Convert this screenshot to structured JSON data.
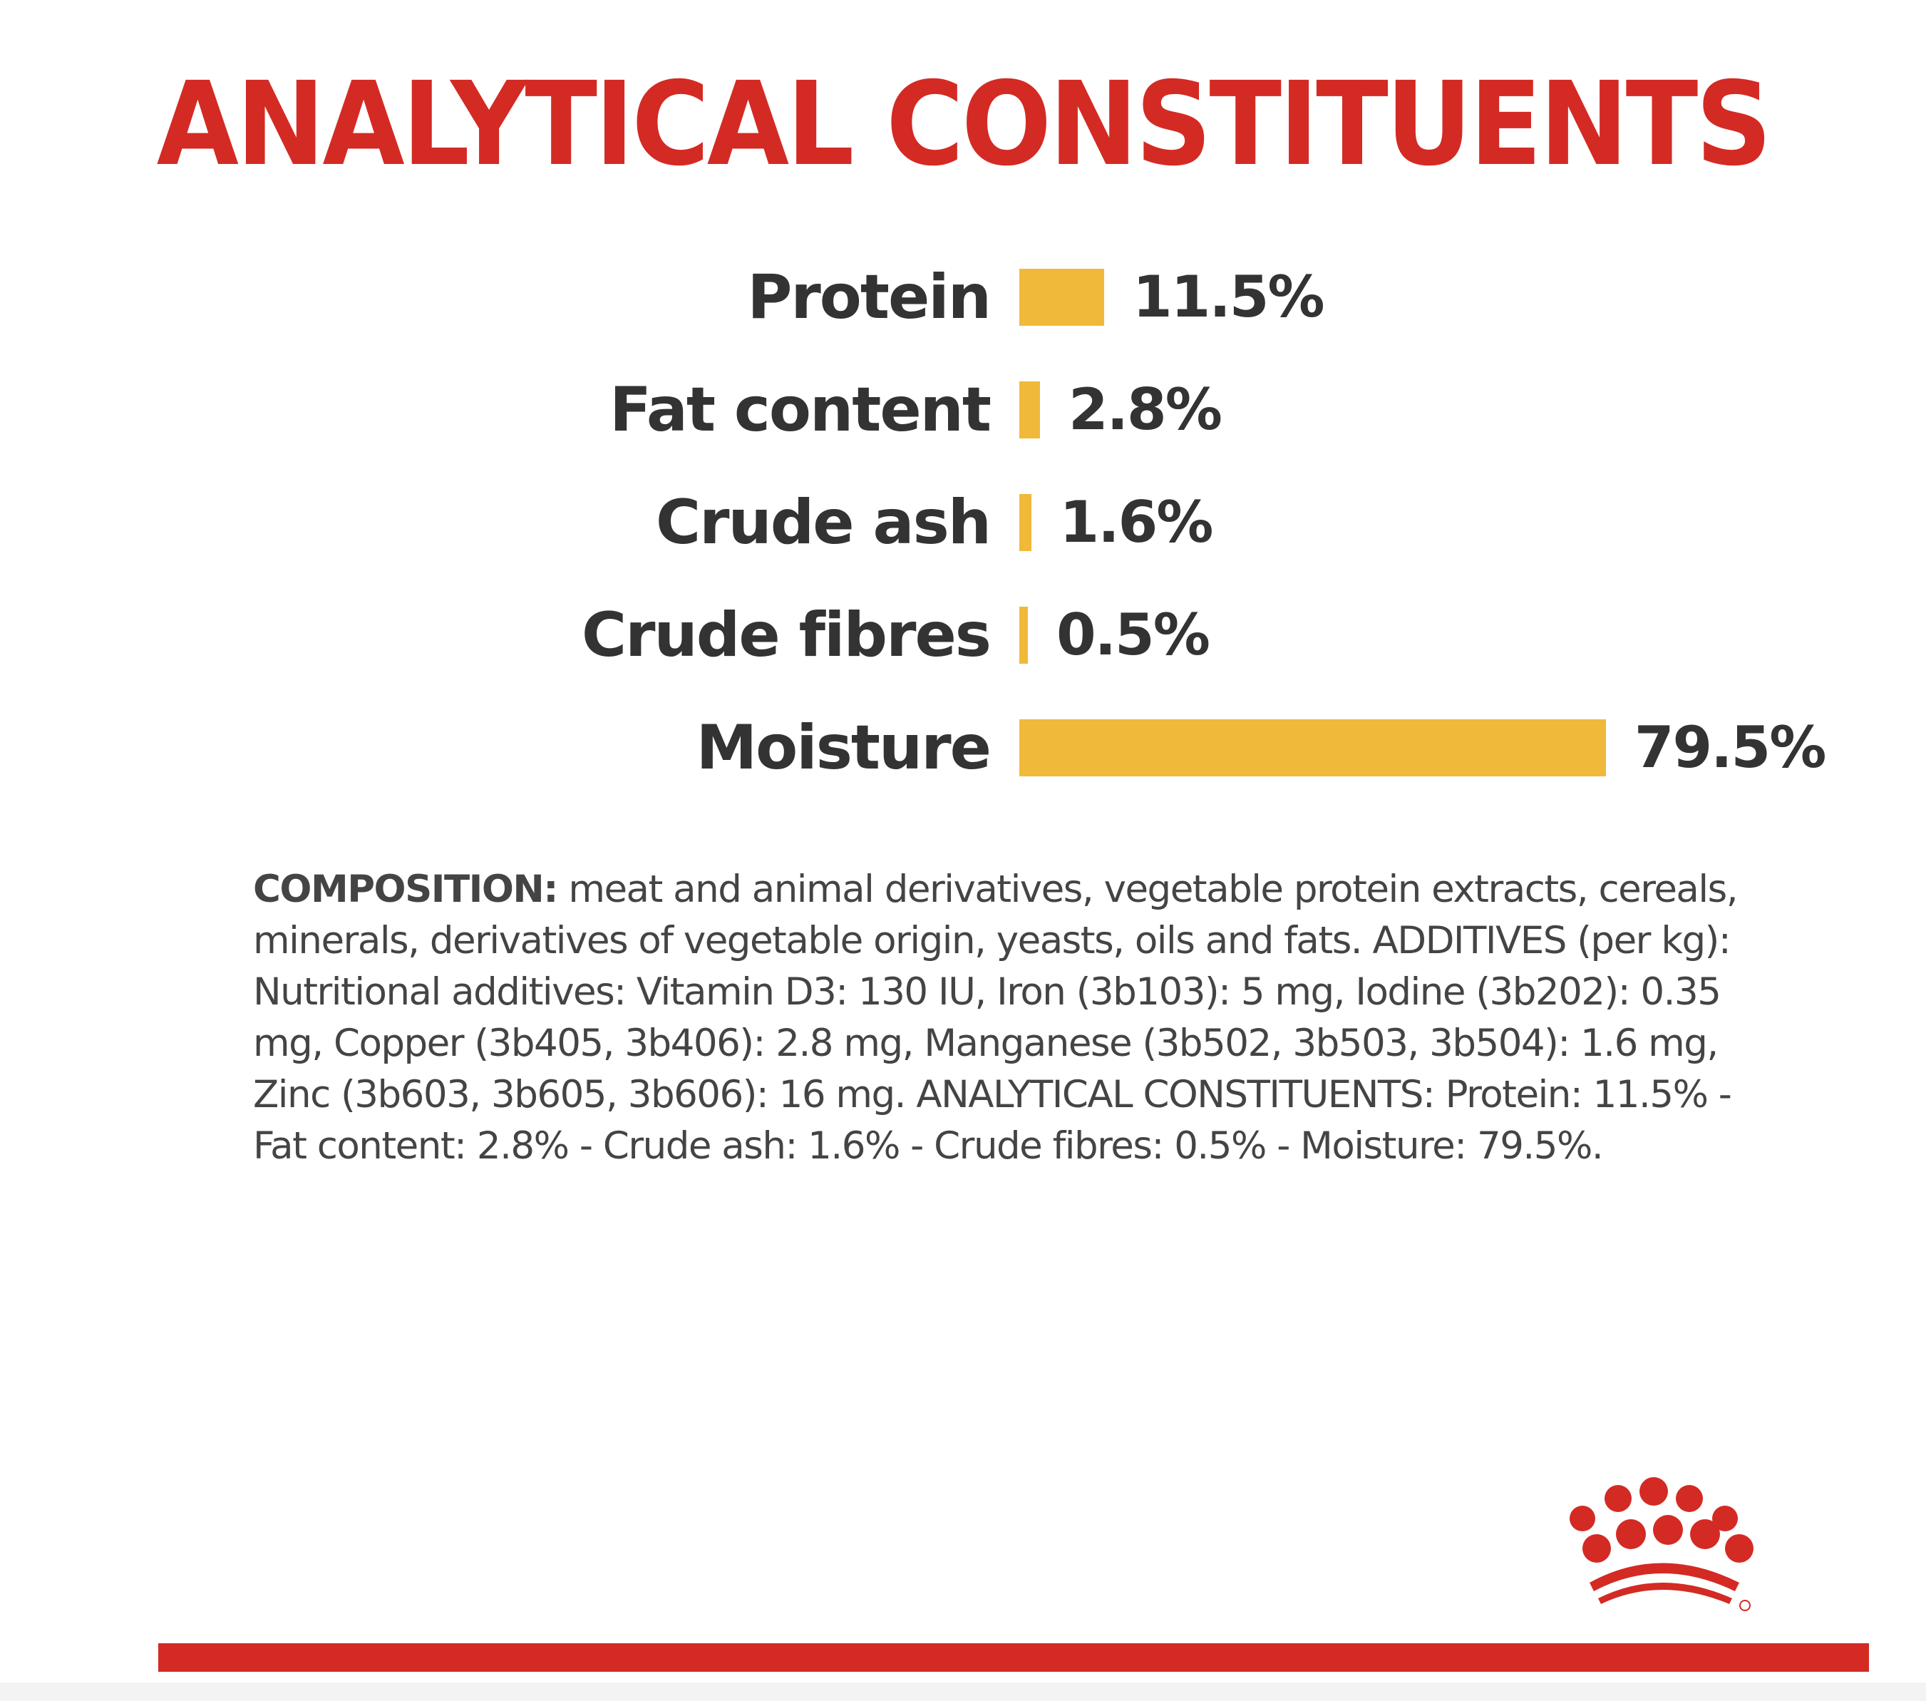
{
  "chart_data": {
    "type": "bar",
    "orientation": "horizontal",
    "title": "ANALYTICAL CONSTITUENTS",
    "categories": [
      "Protein",
      "Fat content",
      "Crude ash",
      "Crude fibres",
      "Moisture"
    ],
    "values": [
      11.5,
      2.8,
      1.6,
      0.5,
      79.5
    ],
    "value_labels": [
      "11.5%",
      "2.8%",
      "1.6%",
      "0.5%",
      "79.5%"
    ],
    "unit": "%",
    "bar_color": "#f0b93a",
    "grid": false,
    "legend": "none"
  },
  "composition": {
    "lead": "COMPOSITION:",
    "text": " meat and animal derivatives, vegetable protein extracts, cereals, minerals, derivatives of vegetable origin, yeasts, oils and fats. ADDITIVES (per kg): Nutritional additives: Vitamin D3: 130 IU, Iron (3b103): 5 mg, Iodine (3b202): 0.35 mg, Copper (3b405, 3b406): 2.8 mg, Manganese (3b502, 3b503, 3b504): 1.6 mg, Zinc (3b603, 3b605, 3b606): 16 mg. ANALYTICAL CONSTITUENTS: Protein: 11.5% - Fat content: 2.8% - Crude ash: 1.6% - Crude fibres: 0.5% - Moisture: 79.5%."
  },
  "brand": {
    "logo_icon": "royal-canin-crown-icon",
    "accent_color": "#d42a24"
  }
}
